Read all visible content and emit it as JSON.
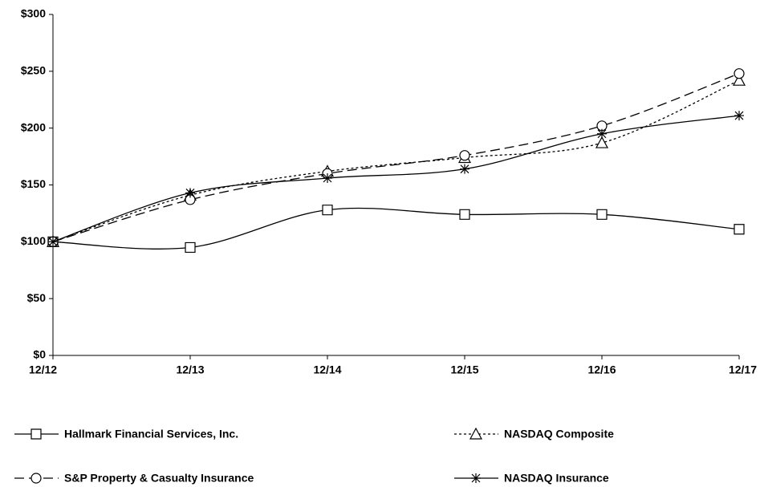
{
  "chart_data": {
    "type": "line",
    "categories": [
      "12/12",
      "12/13",
      "12/14",
      "12/15",
      "12/16",
      "12/17"
    ],
    "series": [
      {
        "name": "Hallmark Financial Services, Inc.",
        "color": "#000000",
        "dash": "solid",
        "marker": "square",
        "values": [
          100,
          95,
          128,
          124,
          124,
          111
        ]
      },
      {
        "name": "NASDAQ Composite",
        "color": "#000000",
        "dash": "dotted",
        "marker": "triangle",
        "values": [
          100,
          141,
          162,
          174,
          187,
          242
        ]
      },
      {
        "name": "S&P Property & Casualty Insurance",
        "color": "#000000",
        "dash": "dashed",
        "marker": "circle",
        "values": [
          100,
          137,
          160,
          176,
          202,
          248
        ]
      },
      {
        "name": "NASDAQ Insurance",
        "color": "#000000",
        "dash": "solid",
        "marker": "star",
        "values": [
          100,
          143,
          156,
          164,
          195,
          211
        ]
      }
    ],
    "ylim": [
      0,
      300
    ],
    "yticks": [
      {
        "value": 0,
        "label": "$0"
      },
      {
        "value": 50,
        "label": "$50"
      },
      {
        "value": 100,
        "label": "$100"
      },
      {
        "value": 150,
        "label": "$150"
      },
      {
        "value": 200,
        "label": "$200"
      },
      {
        "value": 250,
        "label": "$250"
      },
      {
        "value": 300,
        "label": "$300"
      }
    ],
    "grid": false,
    "legend": "bottom"
  }
}
